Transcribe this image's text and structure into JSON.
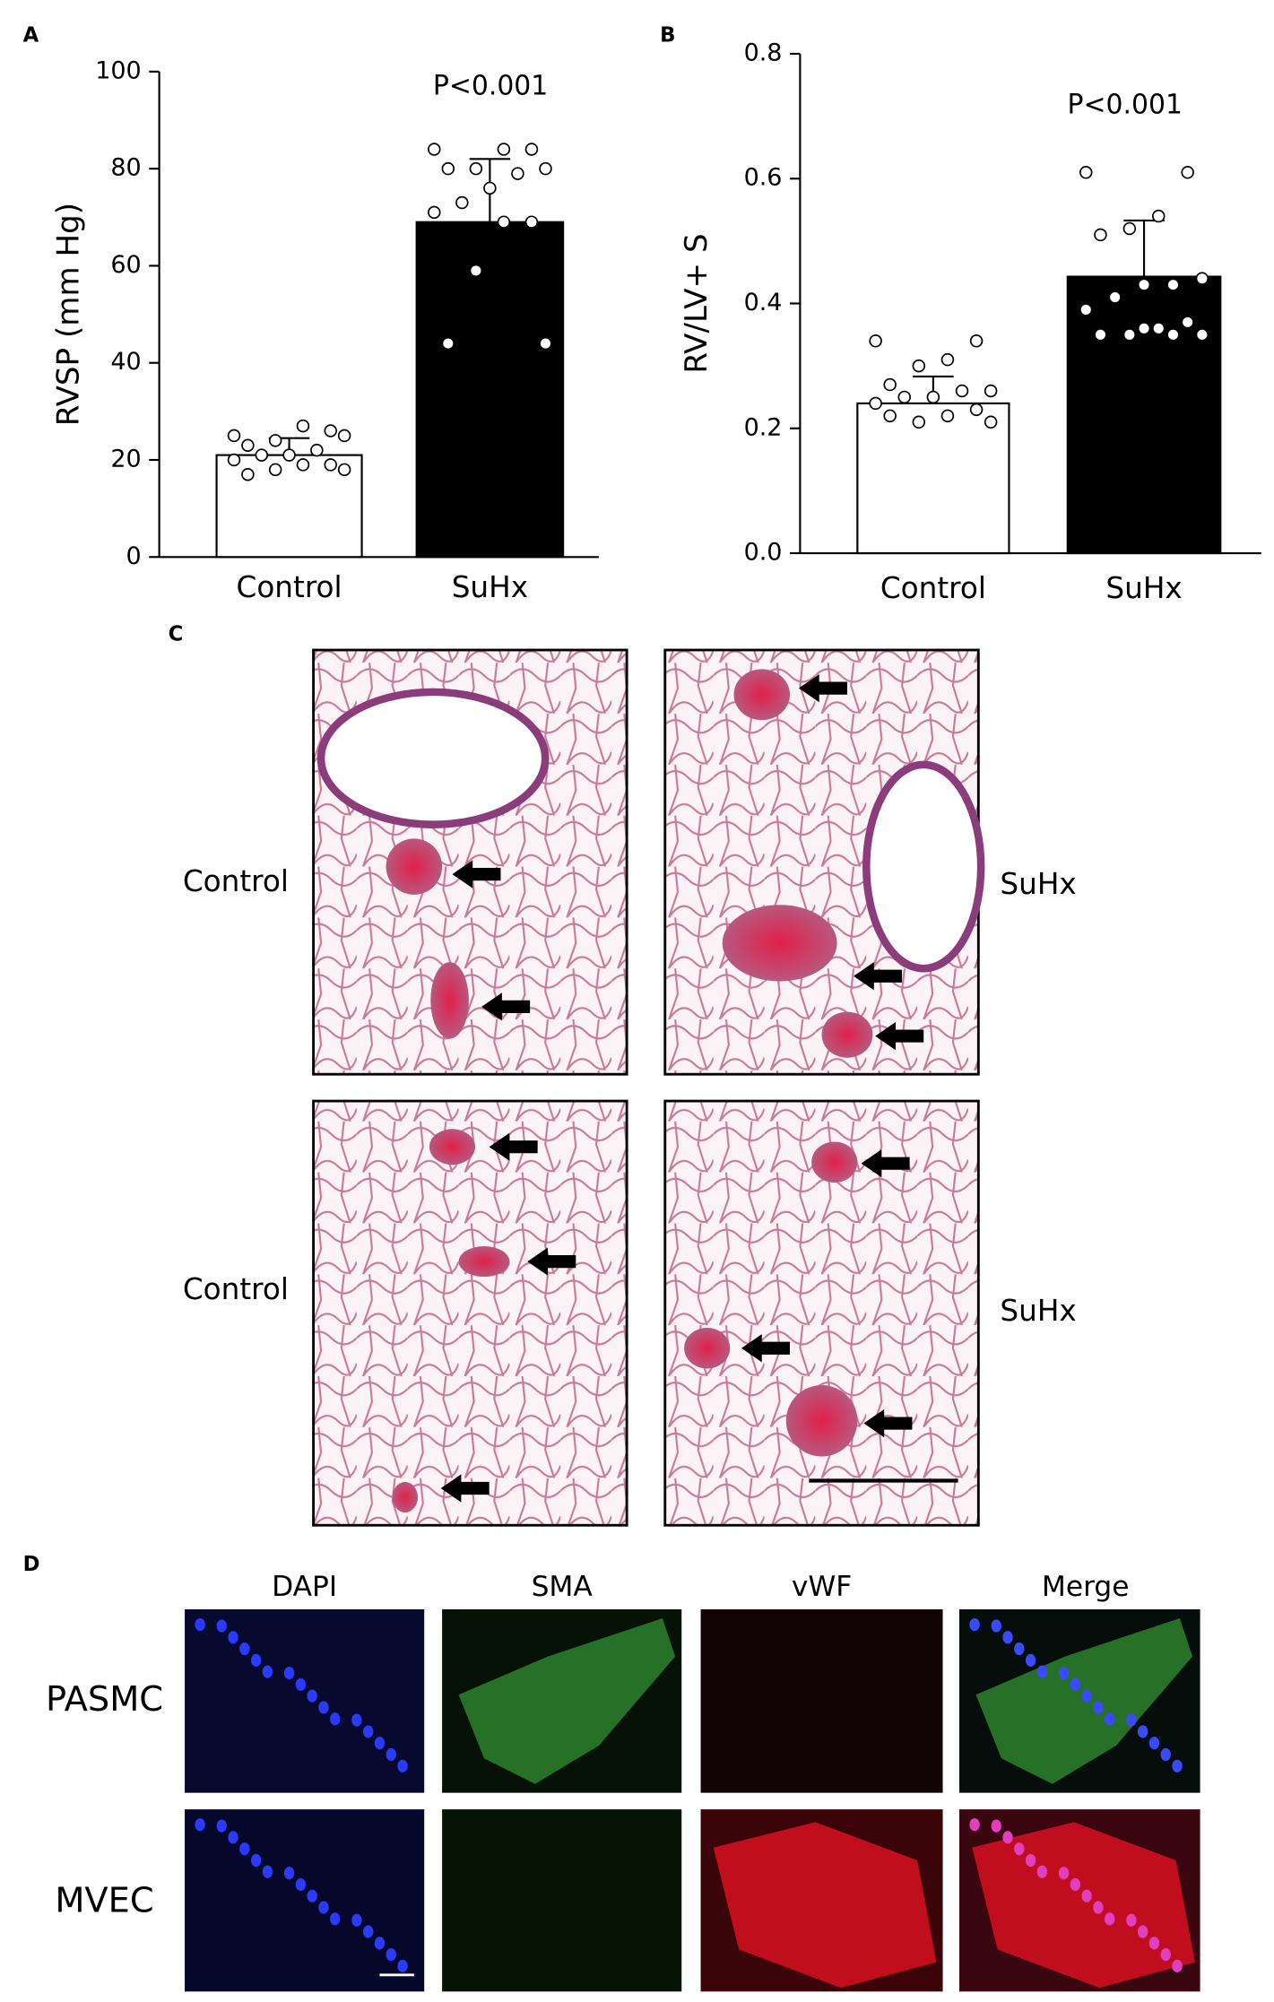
{
  "chart_data": [
    {
      "type": "bar",
      "panel": "A",
      "y_label": "RVSP (mm Hg)",
      "annotation": "P<0.001",
      "categories": [
        "Control",
        "SuHx"
      ],
      "values": [
        21,
        69
      ],
      "errors": [
        3.5,
        13
      ],
      "colors": [
        "#ffffff",
        "#000000"
      ],
      "points": [
        [
          25,
          26,
          27,
          24,
          23,
          25,
          22,
          21,
          21,
          20,
          19,
          19,
          18,
          17,
          18
        ],
        [
          84,
          84,
          84,
          80,
          80,
          80,
          79,
          76,
          73,
          71,
          69,
          69,
          59,
          44,
          44
        ]
      ],
      "ylim": [
        0,
        100
      ],
      "yticks": [
        0,
        20,
        40,
        60,
        80,
        100
      ]
    },
    {
      "type": "bar",
      "panel": "B",
      "y_label": "RV/LV+ S",
      "annotation": "P<0.001",
      "categories": [
        "Control",
        "SuHx"
      ],
      "values": [
        0.24,
        0.443
      ],
      "errors": [
        0.043,
        0.09
      ],
      "colors": [
        "#ffffff",
        "#000000"
      ],
      "points": [
        [
          0.34,
          0.34,
          0.31,
          0.3,
          0.27,
          0.26,
          0.26,
          0.25,
          0.25,
          0.24,
          0.23,
          0.22,
          0.21,
          0.22,
          0.21
        ],
        [
          0.61,
          0.61,
          0.54,
          0.52,
          0.51,
          0.44,
          0.43,
          0.43,
          0.41,
          0.39,
          0.37,
          0.36,
          0.35,
          0.35,
          0.35,
          0.35,
          0.36
        ]
      ],
      "ylim": [
        0,
        0.8
      ],
      "yticks": [
        {
          "value": 0,
          "label": "0.0"
        },
        0.2,
        0.4,
        0.6,
        0.8
      ]
    }
  ],
  "panel_c": {
    "label": "C",
    "row_labels": [
      [
        "Control",
        "SuHx"
      ],
      [
        "Control",
        "SuHx"
      ]
    ]
  },
  "panel_d": {
    "label": "D",
    "columns": [
      "DAPI",
      "SMA",
      "vWF",
      "Merge"
    ],
    "rows": [
      "PASMC",
      "MVEC"
    ]
  }
}
